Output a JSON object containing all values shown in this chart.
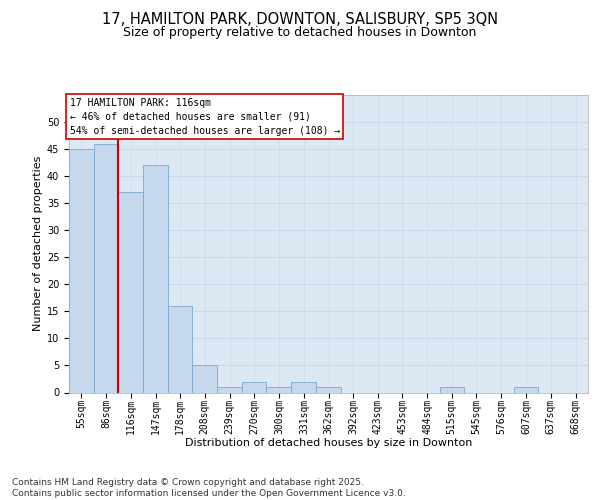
{
  "title": "17, HAMILTON PARK, DOWNTON, SALISBURY, SP5 3QN",
  "subtitle": "Size of property relative to detached houses in Downton",
  "xlabel": "Distribution of detached houses by size in Downton",
  "ylabel": "Number of detached properties",
  "bar_labels": [
    "55sqm",
    "86sqm",
    "116sqm",
    "147sqm",
    "178sqm",
    "208sqm",
    "239sqm",
    "270sqm",
    "300sqm",
    "331sqm",
    "362sqm",
    "392sqm",
    "423sqm",
    "453sqm",
    "484sqm",
    "515sqm",
    "545sqm",
    "576sqm",
    "607sqm",
    "637sqm",
    "668sqm"
  ],
  "bar_edges": [
    55,
    86,
    116,
    147,
    178,
    208,
    239,
    270,
    300,
    331,
    362,
    392,
    423,
    453,
    484,
    515,
    545,
    576,
    607,
    637,
    668
  ],
  "bar_heights": [
    45,
    46,
    37,
    42,
    16,
    5,
    1,
    2,
    1,
    2,
    1,
    0,
    0,
    0,
    0,
    1,
    0,
    0,
    1,
    0
  ],
  "bar_color": "#c5d8ed",
  "bar_edgecolor": "#7aaace",
  "vline_x": 116,
  "vline_color": "#cc0000",
  "annotation_title": "17 HAMILTON PARK: 116sqm",
  "annotation_line1": "← 46% of detached houses are smaller (91)",
  "annotation_line2": "54% of semi-detached houses are larger (108) →",
  "annotation_box_color": "#ffffff",
  "annotation_box_edgecolor": "#cc0000",
  "ylim": [
    0,
    55
  ],
  "yticks": [
    0,
    5,
    10,
    15,
    20,
    25,
    30,
    35,
    40,
    45,
    50
  ],
  "grid_color": "#c8d8e8",
  "background_color": "#dce8f4",
  "footer_line1": "Contains HM Land Registry data © Crown copyright and database right 2025.",
  "footer_line2": "Contains public sector information licensed under the Open Government Licence v3.0.",
  "title_fontsize": 10.5,
  "subtitle_fontsize": 9,
  "axis_label_fontsize": 8,
  "tick_fontsize": 7,
  "annotation_fontsize": 7,
  "footer_fontsize": 6.5
}
